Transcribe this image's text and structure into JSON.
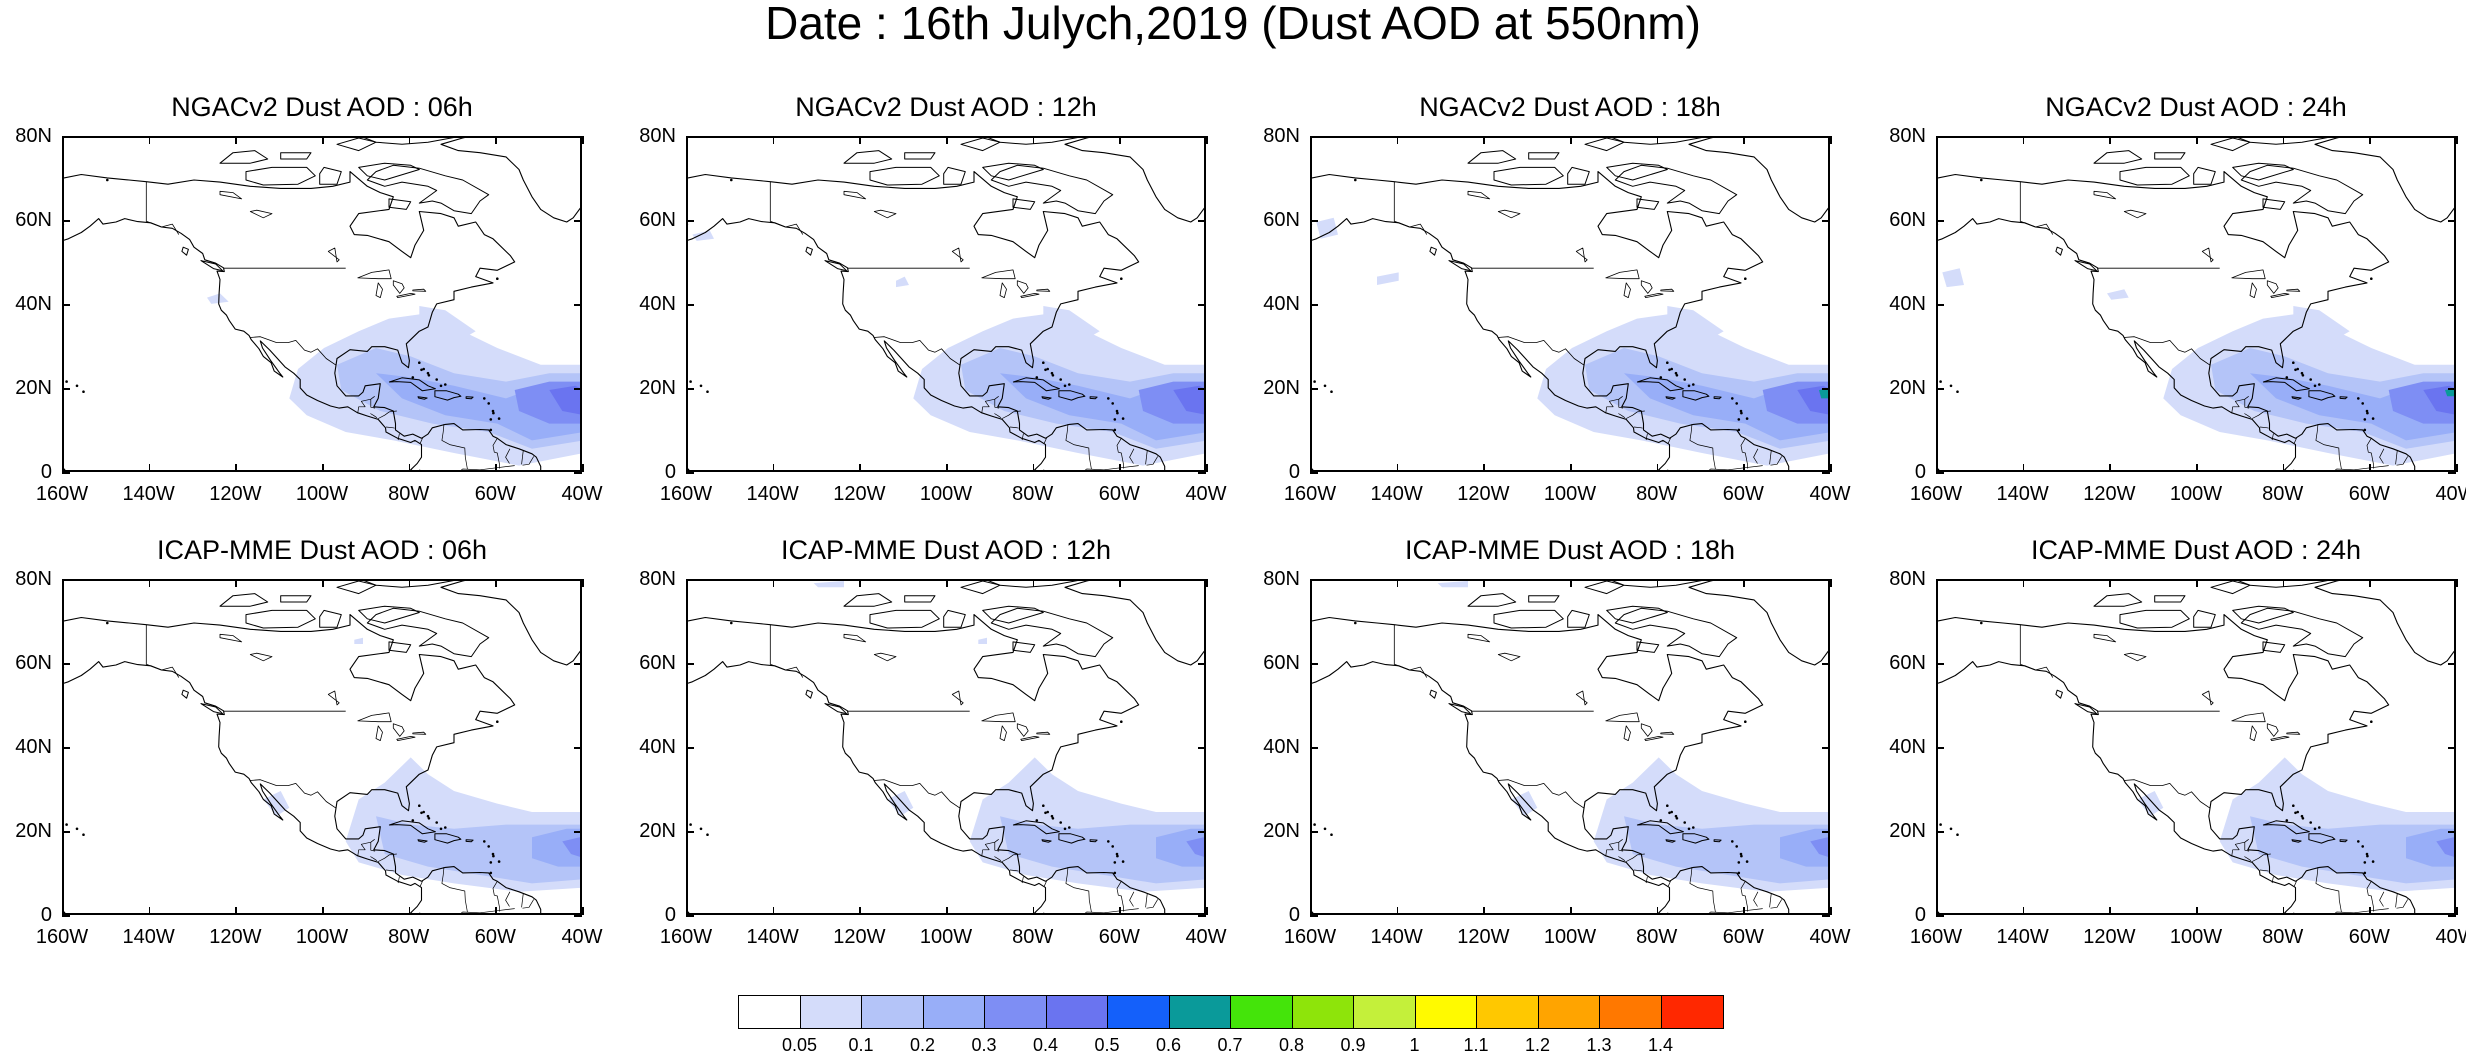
{
  "title": "Date : 16th Julych,2019 (Dust AOD at 550nm)",
  "panels": [
    {
      "title": "NGACv2 Dust AOD : 06h"
    },
    {
      "title": "NGACv2 Dust AOD : 12h"
    },
    {
      "title": "NGACv2 Dust AOD : 18h"
    },
    {
      "title": "NGACv2 Dust AOD : 24h"
    },
    {
      "title": "ICAP-MME Dust AOD : 06h"
    },
    {
      "title": "ICAP-MME Dust AOD : 12h"
    },
    {
      "title": "ICAP-MME Dust AOD : 18h"
    },
    {
      "title": "ICAP-MME Dust AOD : 24h"
    }
  ],
  "lat_ticks": [
    "80N",
    "60N",
    "40N",
    "20N",
    "0"
  ],
  "lon_ticks": [
    "160W",
    "140W",
    "120W",
    "100W",
    "80W",
    "60W",
    "40W"
  ],
  "colorbar": {
    "colors": [
      "#ffffff",
      "#d4dcfa",
      "#b4c4f8",
      "#98aef8",
      "#7e8ef4",
      "#6a74f0",
      "#1460fa",
      "#0a9a9a",
      "#44e40a",
      "#8ee40a",
      "#c4f03a",
      "#fffa00",
      "#ffc800",
      "#ffa400",
      "#ff7800",
      "#ff2800"
    ],
    "labels": [
      "0.05",
      "0.1",
      "0.2",
      "0.3",
      "0.4",
      "0.5",
      "0.6",
      "0.7",
      "0.8",
      "0.9",
      "1",
      "1.1",
      "1.2",
      "1.3",
      "1.4"
    ]
  }
}
